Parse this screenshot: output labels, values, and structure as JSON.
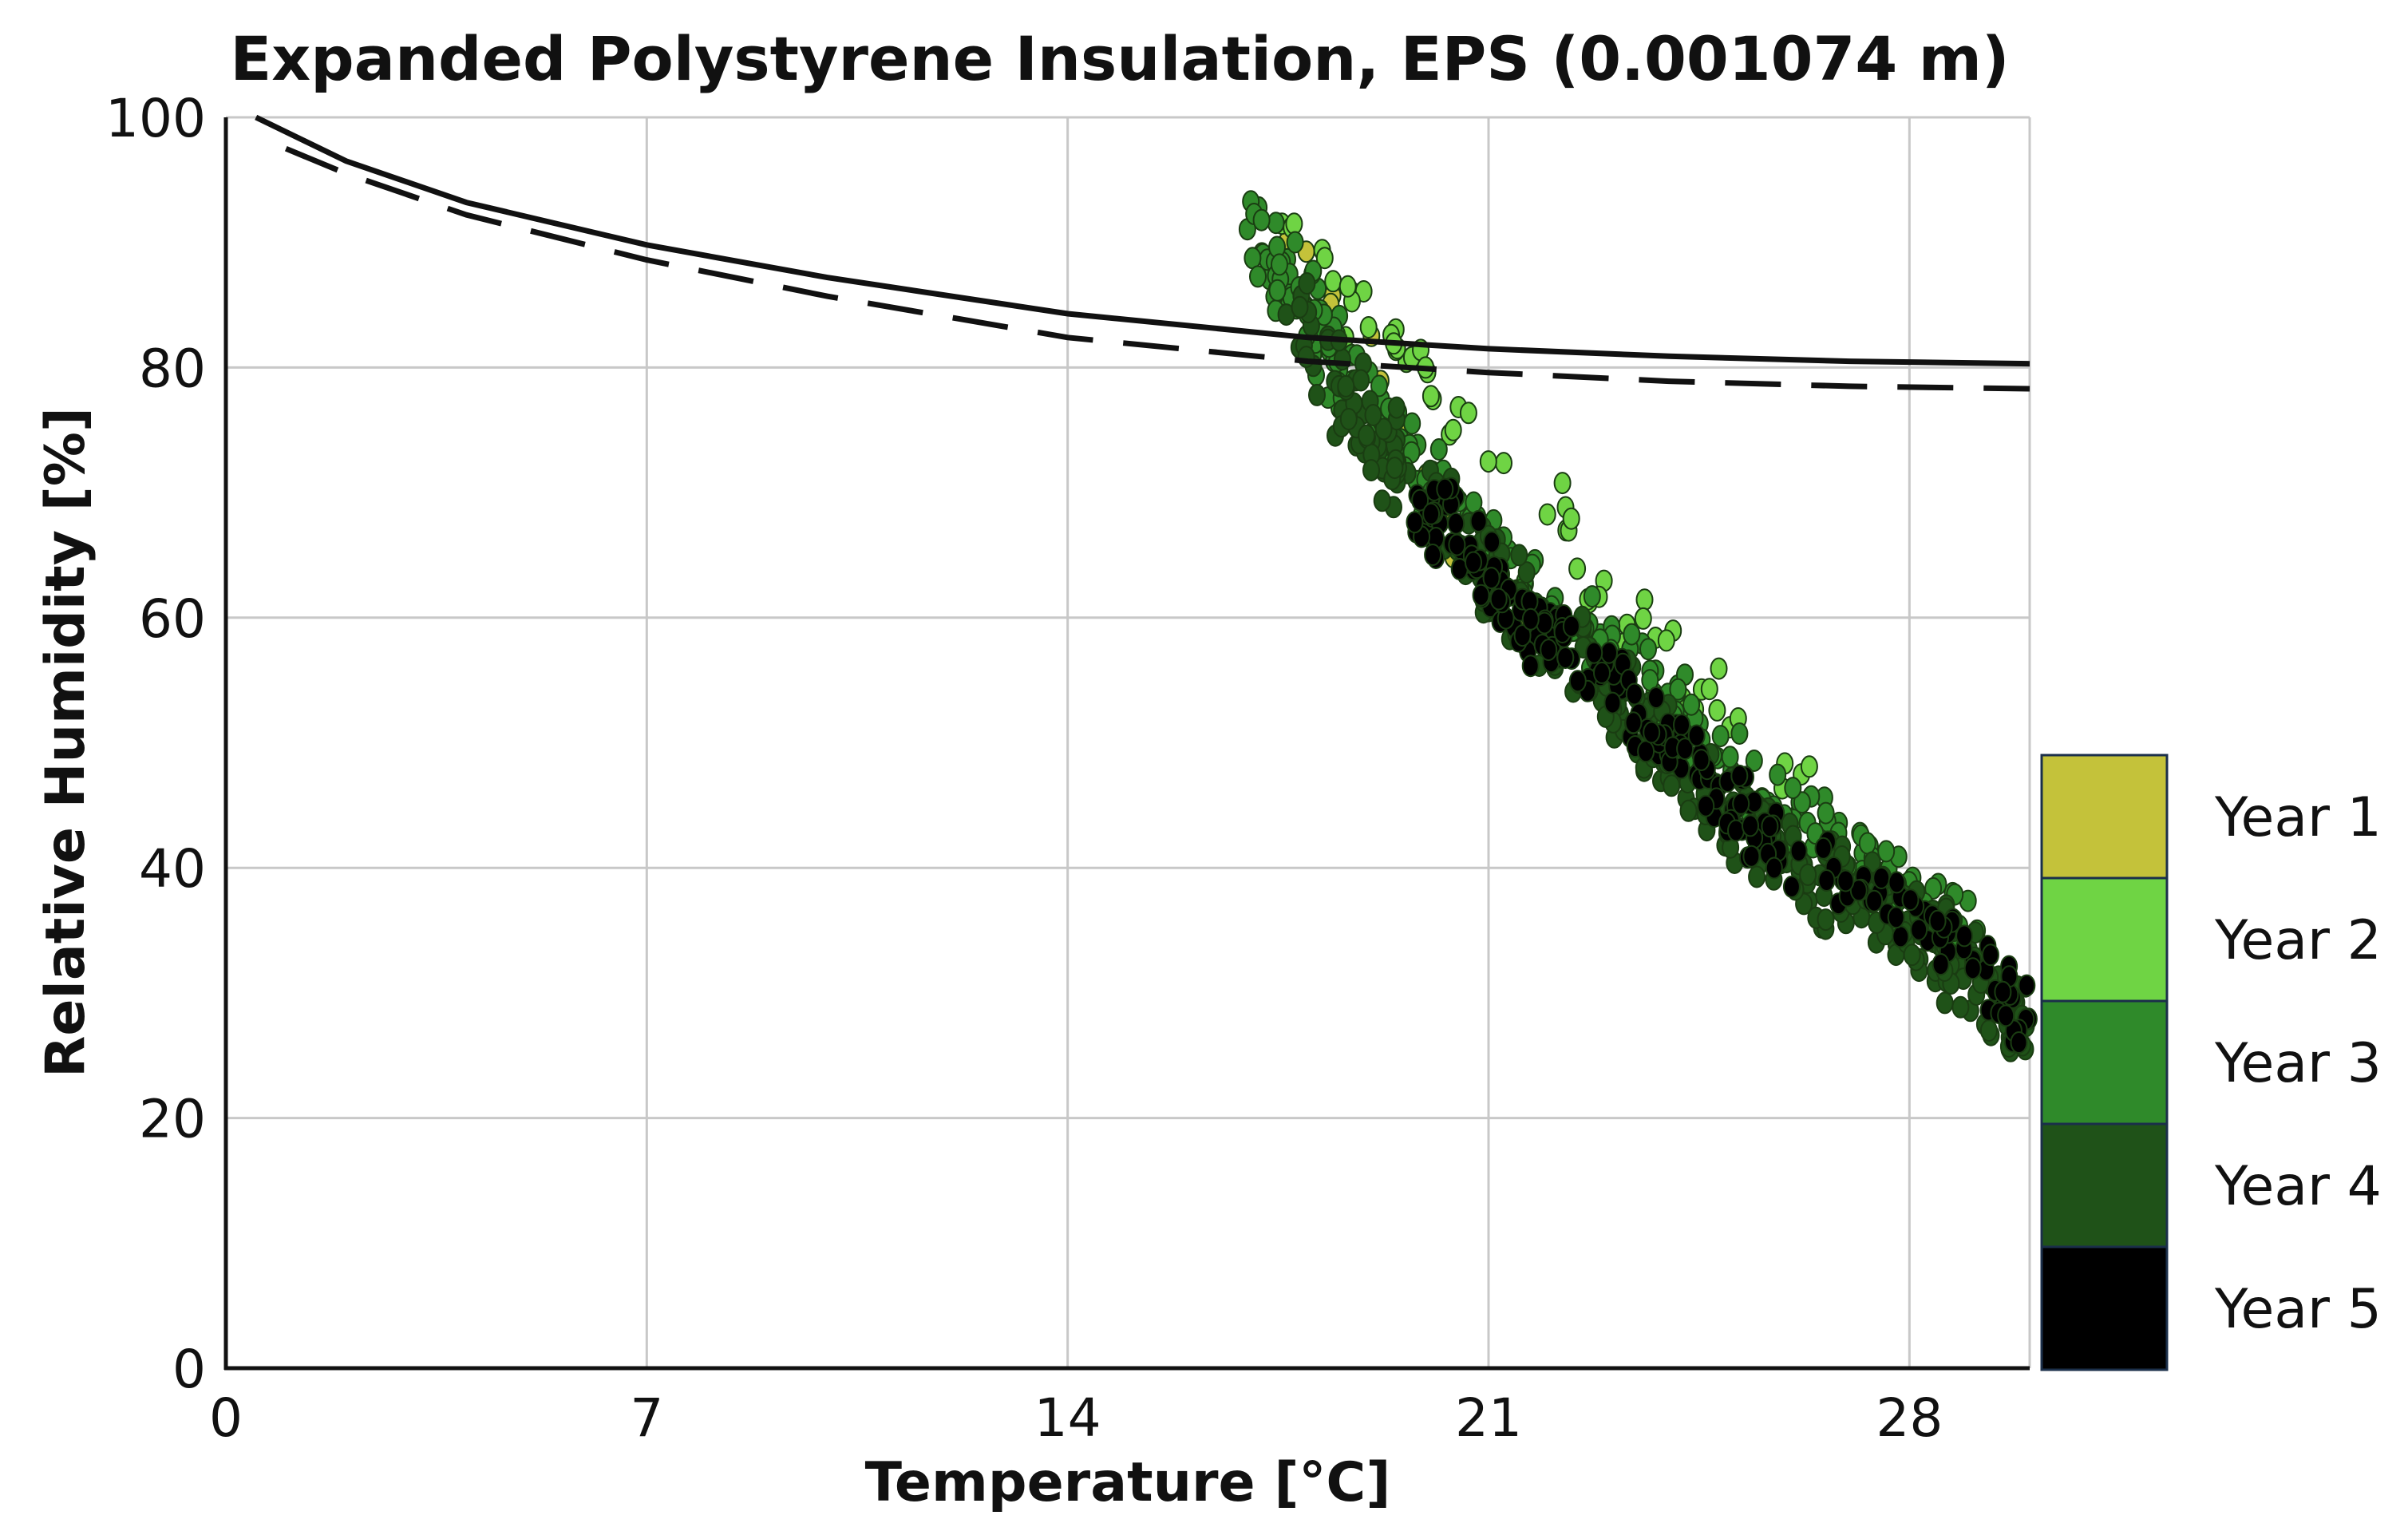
{
  "chart_data": {
    "type": "scatter",
    "title": "Expanded Polystyrene Insulation, EPS (0.001074 m)",
    "xlabel": "Temperature [°C]",
    "ylabel": "Relative Humidity [%]",
    "xlim": [
      0,
      30
    ],
    "ylim": [
      0,
      100
    ],
    "xticks": [
      0,
      7,
      14,
      21,
      28
    ],
    "yticks": [
      0,
      20,
      40,
      60,
      80,
      100
    ],
    "grid": true,
    "legend_position": "right",
    "legend": [
      {
        "label": "Year 1",
        "color": "#c4c23a"
      },
      {
        "label": "Year 2",
        "color": "#6fd444"
      },
      {
        "label": "Year 3",
        "color": "#2f8a2a"
      },
      {
        "label": "Year 4",
        "color": "#1f5218"
      },
      {
        "label": "Year 5",
        "color": "#000000"
      }
    ],
    "lines": [
      {
        "name": "solid",
        "style": "solid",
        "x": [
          0.5,
          2,
          4,
          7,
          10,
          14,
          18,
          21,
          24,
          27,
          30
        ],
        "y": [
          100,
          96.5,
          93.2,
          89.8,
          87.2,
          84.3,
          82.4,
          81.5,
          80.9,
          80.5,
          80.3
        ]
      },
      {
        "name": "dashed",
        "style": "dashed",
        "x": [
          1,
          2,
          4,
          7,
          10,
          14,
          18,
          21,
          24,
          27,
          30
        ],
        "y": [
          97.5,
          95.5,
          92.2,
          88.6,
          85.7,
          82.4,
          80.5,
          79.6,
          78.9,
          78.5,
          78.3
        ]
      }
    ],
    "scatter_bands": [
      {
        "name": "Year 1",
        "color": "#c4c23a",
        "path": [
          [
            17.5,
            91
          ],
          [
            18.2,
            88
          ],
          [
            19,
            80
          ],
          [
            20,
            71
          ],
          [
            21,
            62
          ],
          [
            22,
            55
          ]
        ],
        "spread": 1.2,
        "count": 20
      },
      {
        "name": "Year 2",
        "color": "#6fd444",
        "path": [
          [
            17.3,
            91.5
          ],
          [
            18.5,
            86
          ],
          [
            20,
            78
          ],
          [
            21.5,
            72
          ],
          [
            23,
            62
          ],
          [
            25,
            52
          ],
          [
            27,
            45
          ]
        ],
        "spread": 2.2,
        "count": 60
      },
      {
        "name": "Year 3",
        "color": "#2f8a2a",
        "path": [
          [
            17.2,
            91
          ],
          [
            17.8,
            86
          ],
          [
            18.5,
            80
          ],
          [
            19.5,
            74
          ],
          [
            21,
            66
          ],
          [
            22.5,
            60
          ],
          [
            24,
            53
          ],
          [
            25.5,
            46
          ],
          [
            27,
            41
          ],
          [
            29,
            35
          ]
        ],
        "spread": 2.6,
        "count": 260
      },
      {
        "name": "Year 4",
        "color": "#1f5218",
        "path": [
          [
            17.8,
            84
          ],
          [
            18.5,
            78
          ],
          [
            19.5,
            72
          ],
          [
            20.5,
            66
          ],
          [
            21.5,
            61
          ],
          [
            22.5,
            57
          ],
          [
            23.5,
            52
          ],
          [
            24.5,
            46
          ],
          [
            25.5,
            42
          ],
          [
            26.5,
            39
          ],
          [
            27.5,
            37
          ],
          [
            28.5,
            34
          ],
          [
            29.5,
            29
          ],
          [
            30,
            27
          ]
        ],
        "spread": 3.2,
        "count": 340
      },
      {
        "name": "Year 5",
        "color": "#000000",
        "path": [
          [
            19.8,
            70
          ],
          [
            20.5,
            66
          ],
          [
            21.2,
            62
          ],
          [
            22,
            58
          ],
          [
            23,
            55
          ],
          [
            24,
            50
          ],
          [
            25,
            45
          ],
          [
            26,
            41
          ],
          [
            27.5,
            38
          ],
          [
            29,
            33
          ],
          [
            30,
            27
          ]
        ],
        "spread": 2.4,
        "count": 240
      }
    ]
  }
}
